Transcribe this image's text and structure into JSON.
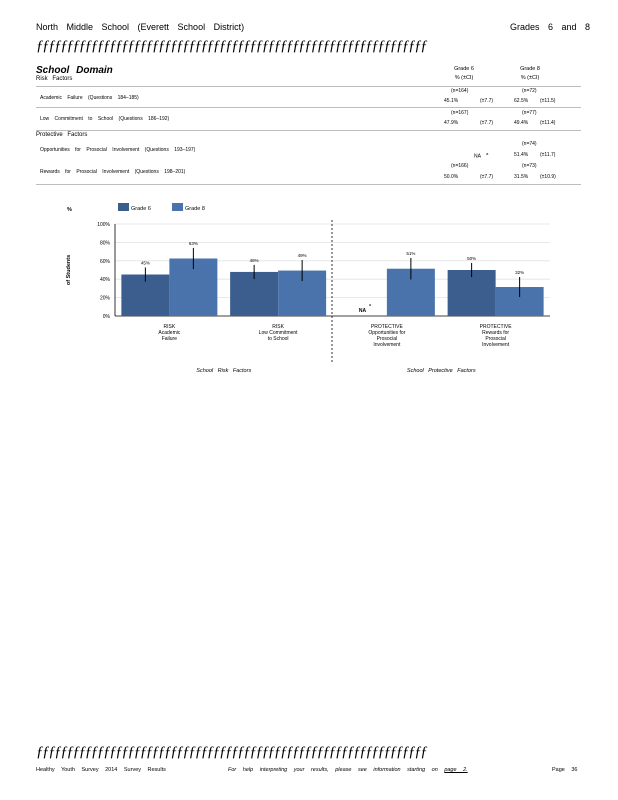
{
  "header": {
    "school": "North Middle School (Everett School District)",
    "grades": "Grades 6 and 8",
    "rule": "ƒƒƒƒƒƒƒƒƒƒƒƒƒƒƒƒƒƒƒƒƒƒƒƒƒƒƒƒƒƒƒƒƒƒƒƒƒƒƒƒƒƒƒƒƒƒƒƒƒƒƒƒƒƒƒƒƒƒƒƒƒƒƒƒ"
  },
  "domain": {
    "title": "School Domain",
    "risk_label": "Risk Factors",
    "protective_label": "Protective Factors",
    "col_g6_title": "Grade 6",
    "col_g6_sub": "% (±CI)",
    "col_g8_title": "Grade 8",
    "col_g8_sub": "% (±CI)"
  },
  "rows": [
    {
      "name": "Academic Failure (Questions 184–185)",
      "n6": "(n=164)",
      "v6": "45.1%",
      "ci6": "(±7.7)",
      "n8": "(n=72)",
      "v8": "62.5%",
      "ci8": "(±11.5)"
    },
    {
      "name": "Low Commitment to School (Questions 186–192)",
      "n6": "(n=167)",
      "v6": "47.9%",
      "ci6": "(±7.7)",
      "n8": "(n=77)",
      "v8": "49.4%",
      "ci8": "(±11.4)"
    },
    {
      "name": "Opportunities for Prosocial Involvement (Questions 193–197)",
      "n6": "",
      "v6": "NA",
      "ci6": "",
      "na_mark": "a",
      "n8": "(n=74)",
      "v8": "51.4%",
      "ci8": "(±11.7)"
    },
    {
      "name": "Rewards for Prosocial Involvement (Questions 198–201)",
      "n6": "(n=166)",
      "v6": "50.0%",
      "ci6": "(±7.7)",
      "n8": "(n=73)",
      "v8": "31.5%",
      "ci8": "(±10.9)"
    }
  ],
  "chart_data": {
    "type": "bar",
    "categories": [
      "RISK Academic Failure",
      "RISK Low Commitment to School",
      "PROTECTIVE Opportunities for Prosocial Involvement",
      "PROTECTIVE Rewards for Prosocial Involvement"
    ],
    "category_lines": [
      [
        "RISK",
        "Academic",
        "Failure"
      ],
      [
        "RISK",
        "Low Commitment",
        "to School"
      ],
      [
        "PROTECTIVE",
        "Opportunities for",
        "Prosocial",
        "Involvement"
      ],
      [
        "PROTECTIVE",
        "Rewards for",
        "Prosocial",
        "Involvement"
      ]
    ],
    "series": [
      {
        "name": "Grade 6",
        "values": [
          45.1,
          47.9,
          null,
          50.0
        ],
        "ci": [
          7.7,
          7.7,
          null,
          7.7
        ],
        "labels": [
          "45%",
          "48%",
          "NA",
          "50%"
        ],
        "color": "#3b5e8f"
      },
      {
        "name": "Grade 8",
        "values": [
          62.5,
          49.4,
          51.4,
          31.5
        ],
        "ci": [
          11.5,
          11.4,
          11.7,
          10.9
        ],
        "labels": [
          "63%",
          "49%",
          "51%",
          "32%"
        ],
        "color": "#4a73ab"
      }
    ],
    "na_note": "a",
    "ylabel_top": "%",
    "ylabel": "of Students",
    "yticks": [
      "0%",
      "20%",
      "40%",
      "60%",
      "80%",
      "100%"
    ],
    "ylim": [
      0,
      100
    ],
    "group_labels": [
      "School Risk Factors",
      "School Protective Factors"
    ],
    "grid": true,
    "legend_position": "top"
  },
  "footer": {
    "rule": "ƒƒƒƒƒƒƒƒƒƒƒƒƒƒƒƒƒƒƒƒƒƒƒƒƒƒƒƒƒƒƒƒƒƒƒƒƒƒƒƒƒƒƒƒƒƒƒƒƒƒƒƒƒƒƒƒƒƒƒƒƒƒƒƒ",
    "survey": "Healthy Youth Survey 2014 Survey Results",
    "help": "For help interpreting your results, please see information starting on",
    "help_link": "page 2.",
    "page": "Page 36"
  }
}
